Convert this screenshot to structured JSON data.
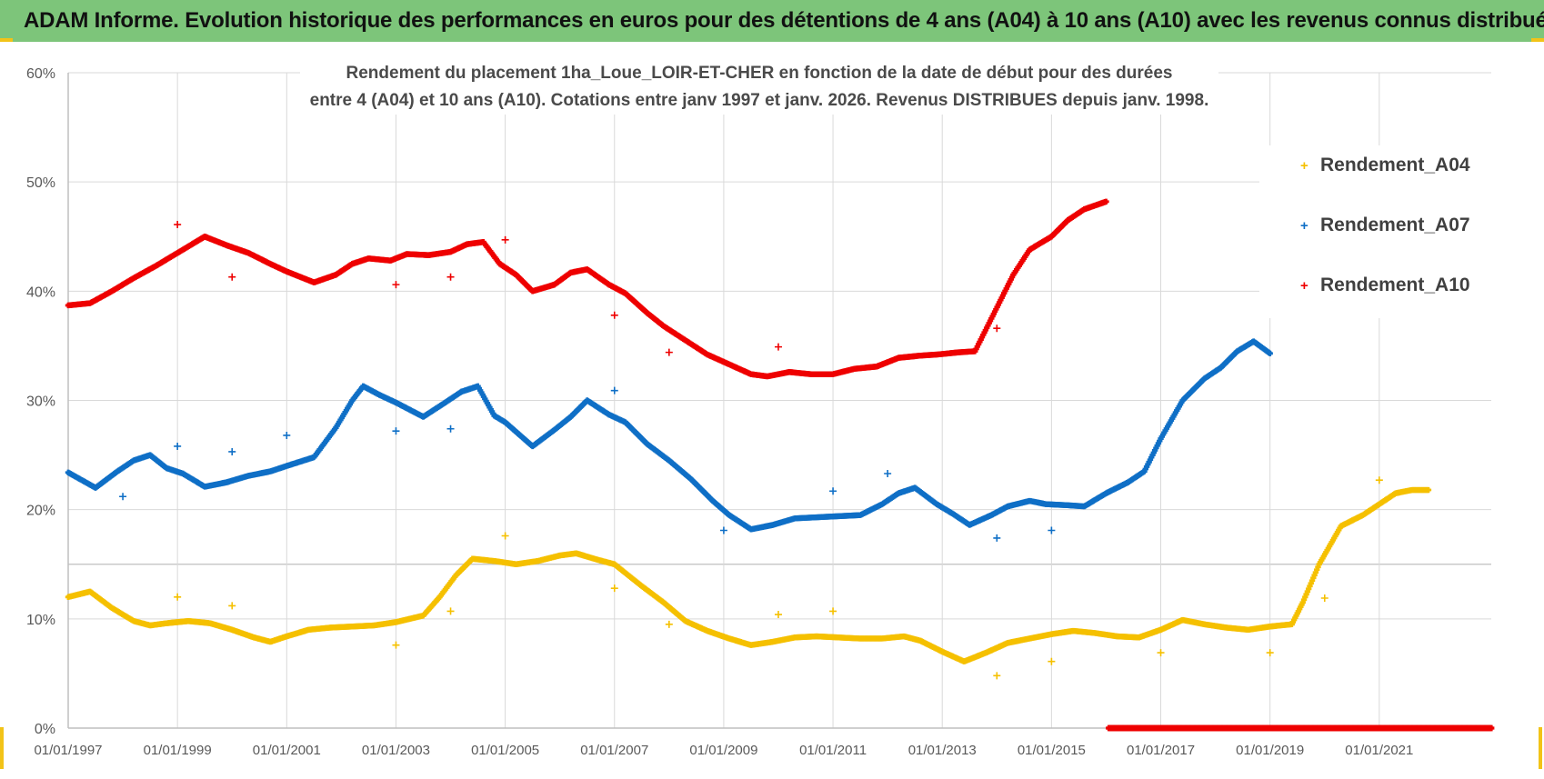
{
  "banner": {
    "title": "ADAM Informe. Evolution historique des performances en euros pour des détentions de 4 ans (A04) à 10 ans (A10) avec les revenus connus distribués",
    "color": "#7dc57a"
  },
  "chart_data": {
    "type": "scatter",
    "title": "Rendement du placement 1ha_Loue_LOIR-ET-CHER en fonction de la date de début pour des durées",
    "subtitle": "entre 4 (A04) et 10 ans (A10).  Cotations entre janv 1997 et janv. 2026. Revenus DISTRIBUES depuis janv. 1998.",
    "xlabel": "",
    "ylabel": "",
    "xlim": [
      1997.0,
      2023.05
    ],
    "ylim": [
      0,
      60
    ],
    "y_ticks": [
      "0%",
      "10%",
      "20%",
      "30%",
      "40%",
      "50%",
      "60%"
    ],
    "x_ticks": [
      "01/01/1997",
      "01/01/1999",
      "01/01/2001",
      "01/01/2003",
      "01/01/2005",
      "01/01/2007",
      "01/01/2009",
      "01/01/2011",
      "01/01/2013",
      "01/01/2015",
      "01/01/2017",
      "01/01/2019",
      "01/01/2021"
    ],
    "grid": true,
    "legend_position": "right",
    "series": [
      {
        "name": "Rendement_A04",
        "color": "#f5c000",
        "points": [
          [
            1997.0,
            12.0
          ],
          [
            1997.4,
            12.5
          ],
          [
            1997.8,
            11.0
          ],
          [
            1998.2,
            9.8
          ],
          [
            1998.5,
            9.4
          ],
          [
            1998.8,
            9.6
          ],
          [
            1999.2,
            9.8
          ],
          [
            1999.6,
            9.6
          ],
          [
            2000.0,
            9.0
          ],
          [
            2000.4,
            8.3
          ],
          [
            2000.7,
            7.9
          ],
          [
            2001.0,
            8.4
          ],
          [
            2001.4,
            9.0
          ],
          [
            2001.8,
            9.2
          ],
          [
            2002.2,
            9.3
          ],
          [
            2002.6,
            9.4
          ],
          [
            2003.0,
            9.7
          ],
          [
            2003.5,
            10.3
          ],
          [
            2003.8,
            12.0
          ],
          [
            2004.1,
            14.0
          ],
          [
            2004.4,
            15.5
          ],
          [
            2004.8,
            15.3
          ],
          [
            2005.2,
            15.0
          ],
          [
            2005.6,
            15.3
          ],
          [
            2006.0,
            15.8
          ],
          [
            2006.3,
            16.0
          ],
          [
            2006.7,
            15.4
          ],
          [
            2007.0,
            15.0
          ],
          [
            2007.5,
            13.0
          ],
          [
            2007.9,
            11.5
          ],
          [
            2008.3,
            9.8
          ],
          [
            2008.7,
            8.9
          ],
          [
            2009.1,
            8.2
          ],
          [
            2009.5,
            7.6
          ],
          [
            2009.9,
            7.9
          ],
          [
            2010.3,
            8.3
          ],
          [
            2010.7,
            8.4
          ],
          [
            2011.1,
            8.3
          ],
          [
            2011.5,
            8.2
          ],
          [
            2011.9,
            8.2
          ],
          [
            2012.3,
            8.4
          ],
          [
            2012.6,
            8.0
          ],
          [
            2013.0,
            7.0
          ],
          [
            2013.4,
            6.1
          ],
          [
            2013.8,
            6.9
          ],
          [
            2014.2,
            7.8
          ],
          [
            2014.6,
            8.2
          ],
          [
            2015.0,
            8.6
          ],
          [
            2015.4,
            8.9
          ],
          [
            2015.8,
            8.7
          ],
          [
            2016.2,
            8.4
          ],
          [
            2016.6,
            8.3
          ],
          [
            2017.0,
            9.0
          ],
          [
            2017.4,
            9.9
          ],
          [
            2017.8,
            9.5
          ],
          [
            2018.2,
            9.2
          ],
          [
            2018.6,
            9.0
          ],
          [
            2019.0,
            9.3
          ],
          [
            2019.4,
            9.5
          ],
          [
            2019.6,
            11.5
          ],
          [
            2019.9,
            15.0
          ],
          [
            2020.3,
            18.5
          ],
          [
            2020.7,
            19.5
          ],
          [
            2021.0,
            20.5
          ],
          [
            2021.3,
            21.5
          ],
          [
            2021.6,
            21.8
          ],
          [
            2021.9,
            21.8
          ]
        ],
        "outliers": [
          [
            1999.0,
            12.0
          ],
          [
            2000.0,
            11.2
          ],
          [
            2003.0,
            7.6
          ],
          [
            2004.0,
            10.7
          ],
          [
            2005.0,
            17.6
          ],
          [
            2007.0,
            12.8
          ],
          [
            2008.0,
            9.5
          ],
          [
            2010.0,
            10.4
          ],
          [
            2011.0,
            10.7
          ],
          [
            2014.0,
            4.8
          ],
          [
            2015.0,
            6.1
          ],
          [
            2017.0,
            6.9
          ],
          [
            2019.0,
            6.9
          ],
          [
            2020.0,
            11.9
          ],
          [
            2021.0,
            22.7
          ]
        ]
      },
      {
        "name": "Rendement_A07",
        "color": "#0f6fc6",
        "points": [
          [
            1997.0,
            23.4
          ],
          [
            1997.5,
            22.0
          ],
          [
            1997.9,
            23.5
          ],
          [
            1998.2,
            24.5
          ],
          [
            1998.5,
            25.0
          ],
          [
            1998.8,
            23.8
          ],
          [
            1999.1,
            23.3
          ],
          [
            1999.5,
            22.1
          ],
          [
            1999.9,
            22.5
          ],
          [
            2000.3,
            23.1
          ],
          [
            2000.7,
            23.5
          ],
          [
            2001.0,
            24.0
          ],
          [
            2001.5,
            24.8
          ],
          [
            2001.9,
            27.5
          ],
          [
            2002.2,
            30.0
          ],
          [
            2002.4,
            31.3
          ],
          [
            2002.7,
            30.5
          ],
          [
            2003.0,
            29.8
          ],
          [
            2003.5,
            28.5
          ],
          [
            2003.9,
            29.8
          ],
          [
            2004.2,
            30.8
          ],
          [
            2004.5,
            31.3
          ],
          [
            2004.8,
            28.6
          ],
          [
            2005.0,
            28.0
          ],
          [
            2005.5,
            25.8
          ],
          [
            2005.9,
            27.3
          ],
          [
            2006.2,
            28.5
          ],
          [
            2006.5,
            30.0
          ],
          [
            2006.9,
            28.7
          ],
          [
            2007.2,
            28.0
          ],
          [
            2007.6,
            26.0
          ],
          [
            2008.0,
            24.5
          ],
          [
            2008.4,
            22.8
          ],
          [
            2008.8,
            20.8
          ],
          [
            2009.1,
            19.5
          ],
          [
            2009.5,
            18.2
          ],
          [
            2009.9,
            18.6
          ],
          [
            2010.3,
            19.2
          ],
          [
            2010.7,
            19.3
          ],
          [
            2011.1,
            19.4
          ],
          [
            2011.5,
            19.5
          ],
          [
            2011.9,
            20.5
          ],
          [
            2012.2,
            21.5
          ],
          [
            2012.5,
            22.0
          ],
          [
            2012.9,
            20.5
          ],
          [
            2013.2,
            19.6
          ],
          [
            2013.5,
            18.6
          ],
          [
            2013.9,
            19.5
          ],
          [
            2014.2,
            20.3
          ],
          [
            2014.6,
            20.8
          ],
          [
            2014.9,
            20.5
          ],
          [
            2015.3,
            20.4
          ],
          [
            2015.6,
            20.3
          ],
          [
            2016.0,
            21.5
          ],
          [
            2016.4,
            22.5
          ],
          [
            2016.7,
            23.5
          ],
          [
            2017.0,
            26.5
          ],
          [
            2017.4,
            30.0
          ],
          [
            2017.8,
            32.0
          ],
          [
            2018.1,
            33.0
          ],
          [
            2018.4,
            34.5
          ],
          [
            2018.7,
            35.4
          ],
          [
            2019.0,
            34.3
          ]
        ],
        "outliers": [
          [
            1998.0,
            21.2
          ],
          [
            1999.0,
            25.8
          ],
          [
            2000.0,
            25.3
          ],
          [
            2001.0,
            26.8
          ],
          [
            2003.0,
            27.2
          ],
          [
            2004.0,
            27.4
          ],
          [
            2007.0,
            30.9
          ],
          [
            2009.0,
            18.1
          ],
          [
            2011.0,
            21.7
          ],
          [
            2012.0,
            23.3
          ],
          [
            2014.0,
            17.4
          ],
          [
            2015.0,
            18.1
          ]
        ]
      },
      {
        "name": "Rendement_A10",
        "color": "#ee0000",
        "points": [
          [
            1997.0,
            38.7
          ],
          [
            1997.4,
            38.9
          ],
          [
            1997.8,
            40.0
          ],
          [
            1998.2,
            41.2
          ],
          [
            1998.6,
            42.3
          ],
          [
            1999.0,
            43.5
          ],
          [
            1999.5,
            45.0
          ],
          [
            1999.9,
            44.2
          ],
          [
            2000.3,
            43.5
          ],
          [
            2000.7,
            42.5
          ],
          [
            2001.0,
            41.8
          ],
          [
            2001.5,
            40.8
          ],
          [
            2001.9,
            41.5
          ],
          [
            2002.2,
            42.5
          ],
          [
            2002.5,
            43.0
          ],
          [
            2002.9,
            42.8
          ],
          [
            2003.2,
            43.4
          ],
          [
            2003.6,
            43.3
          ],
          [
            2004.0,
            43.6
          ],
          [
            2004.3,
            44.3
          ],
          [
            2004.6,
            44.5
          ],
          [
            2004.9,
            42.5
          ],
          [
            2005.2,
            41.5
          ],
          [
            2005.5,
            40.0
          ],
          [
            2005.9,
            40.6
          ],
          [
            2006.2,
            41.7
          ],
          [
            2006.5,
            42.0
          ],
          [
            2006.9,
            40.6
          ],
          [
            2007.2,
            39.8
          ],
          [
            2007.6,
            38.0
          ],
          [
            2007.9,
            36.8
          ],
          [
            2008.3,
            35.5
          ],
          [
            2008.7,
            34.2
          ],
          [
            2009.1,
            33.3
          ],
          [
            2009.5,
            32.4
          ],
          [
            2009.8,
            32.2
          ],
          [
            2010.2,
            32.6
          ],
          [
            2010.6,
            32.4
          ],
          [
            2011.0,
            32.4
          ],
          [
            2011.4,
            32.9
          ],
          [
            2011.8,
            33.1
          ],
          [
            2012.2,
            33.9
          ],
          [
            2012.6,
            34.1
          ],
          [
            2012.9,
            34.2
          ],
          [
            2013.3,
            34.4
          ],
          [
            2013.6,
            34.5
          ],
          [
            2013.9,
            37.5
          ],
          [
            2014.3,
            41.5
          ],
          [
            2014.6,
            43.8
          ],
          [
            2015.0,
            45.0
          ],
          [
            2015.3,
            46.5
          ],
          [
            2015.6,
            47.5
          ],
          [
            2016.0,
            48.2
          ]
        ],
        "outliers": [
          [
            1999.0,
            46.1
          ],
          [
            2000.0,
            41.3
          ],
          [
            2003.0,
            40.6
          ],
          [
            2004.0,
            41.3
          ],
          [
            2005.0,
            44.7
          ],
          [
            2007.0,
            37.8
          ],
          [
            2008.0,
            34.4
          ],
          [
            2010.0,
            34.9
          ],
          [
            2014.0,
            36.6
          ]
        ],
        "zero_segment": [
          2016.05,
          2023.05
        ]
      }
    ]
  }
}
